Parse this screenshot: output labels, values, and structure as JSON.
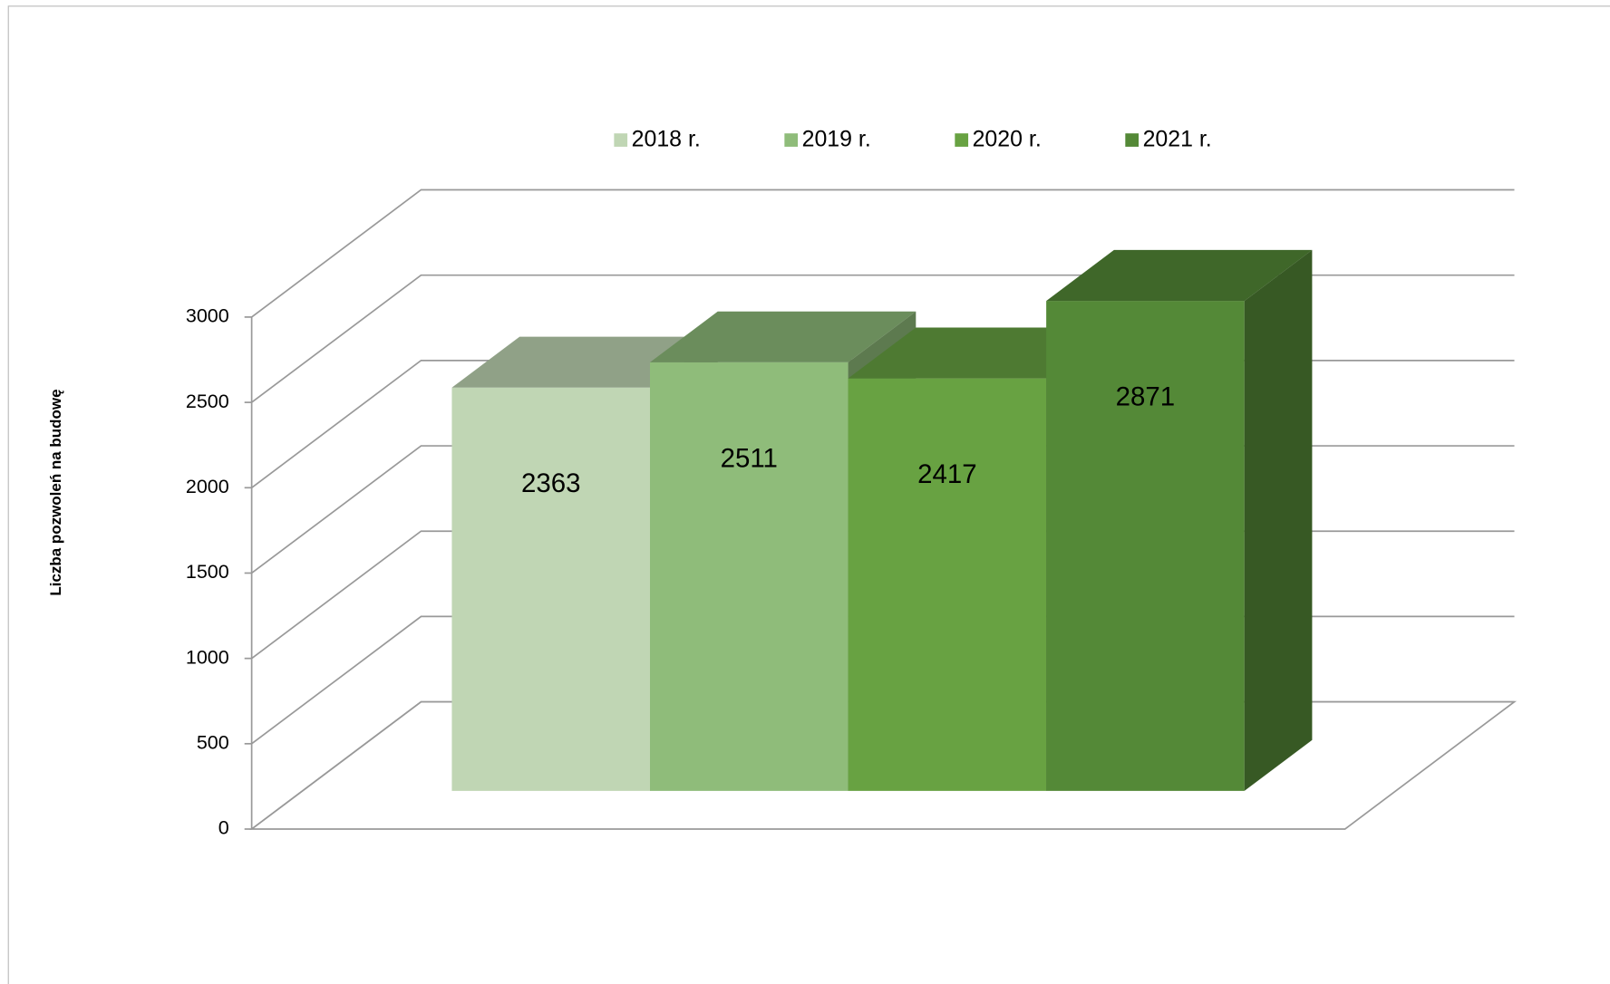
{
  "chart_data": {
    "type": "bar3d",
    "y_label": "Liczba pozwoleń na budowę",
    "categories": [
      null
    ],
    "series": [
      {
        "name": "2018 r.",
        "color": "#c0d6b4",
        "values": [
          2363
        ]
      },
      {
        "name": "2019 r.",
        "color": "#8fbc7a",
        "values": [
          2511
        ]
      },
      {
        "name": "2020 r.",
        "color": "#68a242",
        "values": [
          2417
        ]
      },
      {
        "name": "2021 r.",
        "color": "#548937",
        "values": [
          2871
        ]
      }
    ],
    "ylim": [
      0,
      3000
    ],
    "yticks": [
      0,
      500,
      1000,
      1500,
      2000,
      2500,
      3000
    ],
    "grid": true,
    "legend": "top"
  }
}
